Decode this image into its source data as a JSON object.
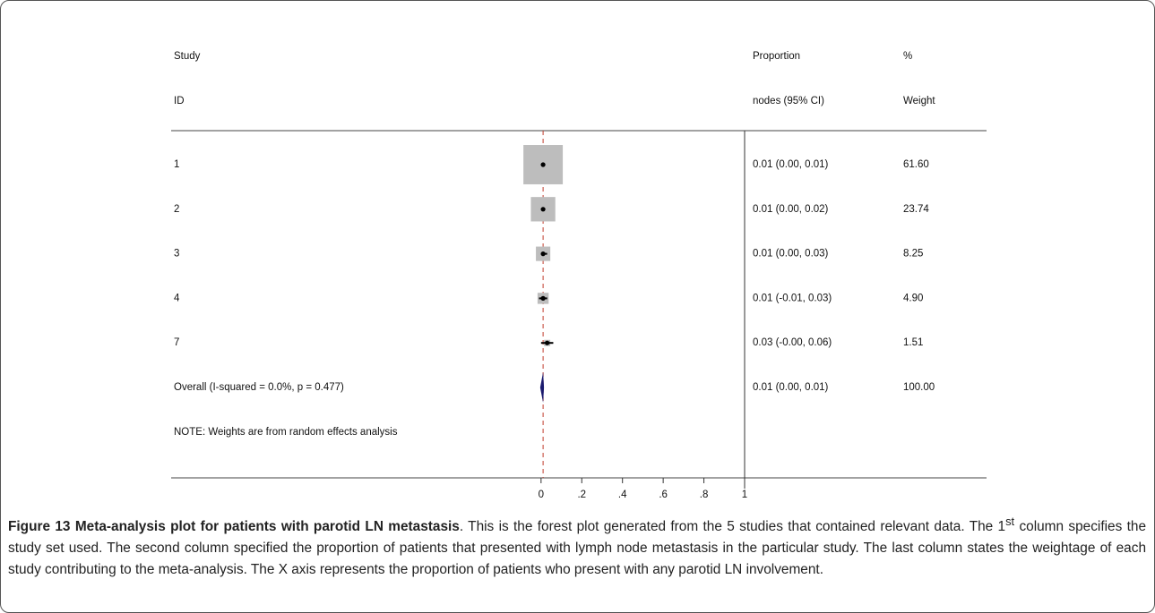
{
  "chart_data": {
    "type": "forest",
    "headers": {
      "study": [
        "Study",
        "ID"
      ],
      "estimate": [
        "Proportion",
        "nodes (95% CI)"
      ],
      "weight": [
        "%",
        "Weight"
      ]
    },
    "categories": [
      "1",
      "2",
      "3",
      "4",
      "7",
      "Overall  (I-squared = 0.0%, p = 0.477)"
    ],
    "values": [
      0.01,
      0.01,
      0.01,
      0.01,
      0.03,
      0.01
    ],
    "lower": [
      0.0,
      0.0,
      0.0,
      -0.01,
      0,
      0.0
    ],
    "upper": [
      0.01,
      0.02,
      0.03,
      0.03,
      0.06,
      0.01
    ],
    "value_labels": [
      "0.01 (0.00, 0.01)",
      "0.01 (0.00, 0.02)",
      "0.01 (0.00, 0.03)",
      "0.01 (-0.01, 0.03)",
      "0.03 (-0.00, 0.06)",
      "0.01 (0.00, 0.01)"
    ],
    "weights": [
      61.6,
      23.74,
      8.25,
      4.9,
      1.51,
      100
    ],
    "weight_labels": [
      "61.60",
      "23.74",
      "8.25",
      "4.90",
      "1.51",
      "100.00"
    ],
    "note": "NOTE: Weights are from random effects analysis",
    "xlim": [
      -0.73,
      1
    ],
    "xticks": [
      0,
      {
        "value": 0.2,
        "label": ".2"
      },
      {
        "value": 0.4,
        "label": ".4"
      },
      {
        "value": 0.6,
        "label": ".6"
      },
      {
        "value": 0.8,
        "label": ".8"
      },
      1
    ],
    "box_color": "#bdbdbd",
    "diamond_color": "#1a1a6e",
    "reference_color": "#c0392b"
  },
  "caption": {
    "title": "Figure 13 Meta-analysis plot for patients with parotid LN metastasis",
    "text_1": ". This is the forest plot generated from the 5 studies that contained relevant data. The 1",
    "superscript": "st",
    "text_2": " column specifies the study set used. The second column specified the proportion of patients that presented with lymph node metastasis in the particular study. The last column states the weightage of each study contributing to the meta-analysis. The X axis represents the proportion of patients who present with any parotid LN involvement."
  }
}
